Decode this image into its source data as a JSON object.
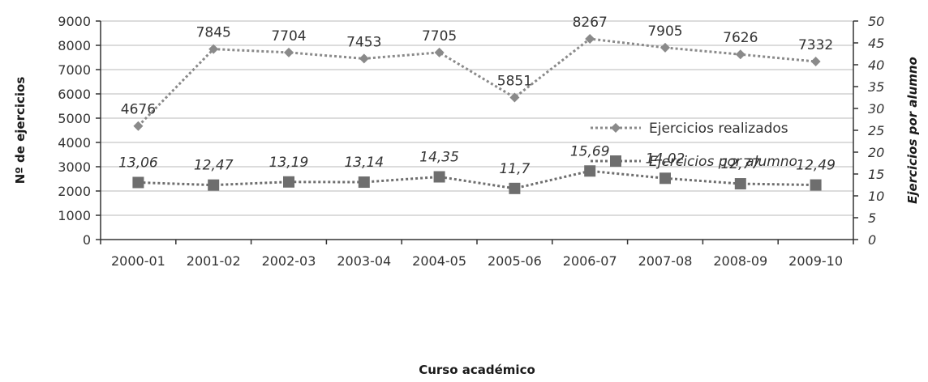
{
  "chart_data": {
    "type": "line",
    "categories": [
      "2000-01",
      "2001-02",
      "2002-03",
      "2003-04",
      "2004-05",
      "2005-06",
      "2006-07",
      "2007-08",
      "2008-09",
      "2009-10"
    ],
    "xlabel": "Curso académico",
    "ylabel": "Nº de ejercicios",
    "ylabel_right": "Ejercicios por alumno",
    "ylim": [
      0,
      9000
    ],
    "ylim_right": [
      0,
      50
    ],
    "yticks": [
      "0",
      "1000",
      "2000",
      "3000",
      "4000",
      "5000",
      "6000",
      "7000",
      "8000",
      "9000"
    ],
    "yticks_right": [
      "0",
      "5",
      "10",
      "15",
      "20",
      "25",
      "30",
      "35",
      "40",
      "45",
      "50"
    ],
    "grid": true,
    "legend_position": "right",
    "series": [
      {
        "name": "Ejercicios realizados",
        "axis": "left",
        "marker": "diamond",
        "values": [
          4676,
          7845,
          7704,
          7453,
          7705,
          5851,
          8267,
          7905,
          7626,
          7332
        ],
        "labels": [
          "4676",
          "7845",
          "7704",
          "7453",
          "7705",
          "5851",
          "8267",
          "7905",
          "7626",
          "7332"
        ]
      },
      {
        "name": "Ejercicios por alumno",
        "axis": "right",
        "marker": "square",
        "values": [
          13.06,
          12.47,
          13.19,
          13.14,
          14.35,
          11.7,
          15.69,
          14.02,
          12.77,
          12.49
        ],
        "labels": [
          "13,06",
          "12,47",
          "13,19",
          "13,14",
          "14,35",
          "11,7",
          "15,69",
          "14,02",
          "12,77",
          "12,49"
        ]
      }
    ],
    "colors": {
      "series_1": "#8a8a8a",
      "series_2": "#6e6e6e",
      "grid": "#c8c8c8",
      "axis": "#333333"
    }
  }
}
